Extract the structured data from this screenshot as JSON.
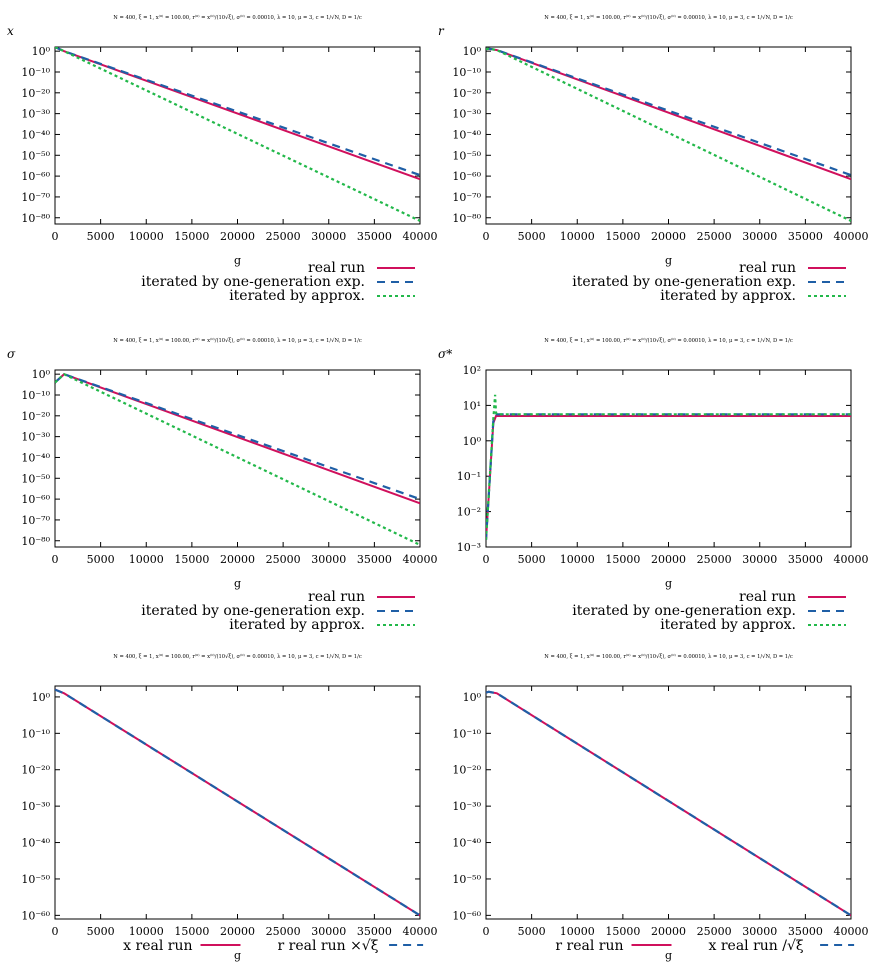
{
  "params": "N = 400, ξ = 1, x⁽⁰⁾ = 100.00, r⁽⁰⁾ = x⁽⁰⁾/(10√ξ), σ⁽⁰⁾ = 0.00010, λ = 10, μ = 3, c = 1/√N, D = 1/c",
  "colors": {
    "real": "#d0105c",
    "one_gen": "#1f5fa6",
    "approx": "#22b84a"
  },
  "chart_data": [
    {
      "id": "p1",
      "type": "line",
      "title": "N = 400, ξ = 1, x⁽⁰⁾ = 100.00, r⁽⁰⁾ = x⁽⁰⁾/(10√ξ), σ⁽⁰⁾ = 0.00010, λ = 10, μ = 3, c = 1/√N, D = 1/c",
      "ylabel": "x",
      "xlabel": "g",
      "yscale": "log",
      "xlim": [
        0,
        40000
      ],
      "ylim_exp": [
        -83,
        2
      ],
      "xticks": [
        "0",
        "5000",
        "10000",
        "15000",
        "20000",
        "25000",
        "30000",
        "35000",
        "40000"
      ],
      "yticks": [
        0,
        -10,
        -20,
        -30,
        -40,
        -50,
        -60,
        -70,
        -80
      ],
      "legend": [
        "real run",
        "iterated by one-generation exp.",
        "iterated by approx."
      ],
      "series": [
        {
          "name": "real run",
          "style": "solid",
          "color": "#d0105c",
          "x": [
            0,
            1000,
            40000
          ],
          "log10y": [
            2,
            0,
            -61.5
          ]
        },
        {
          "name": "iterated by one-generation exp.",
          "style": "dash",
          "color": "#1f5fa6",
          "x": [
            0,
            1000,
            40000
          ],
          "log10y": [
            2,
            0,
            -59.5
          ]
        },
        {
          "name": "iterated by approx.",
          "style": "dot",
          "color": "#22b84a",
          "x": [
            0,
            1000,
            40000
          ],
          "log10y": [
            2,
            0,
            -81.5
          ]
        }
      ]
    },
    {
      "id": "p2",
      "type": "line",
      "title": "N = 400, ξ = 1, x⁽⁰⁾ = 100.00, r⁽⁰⁾ = x⁽⁰⁾/(10√ξ), σ⁽⁰⁾ = 0.00010, λ = 10, μ = 3, c = 1/√N, D = 1/c",
      "ylabel": "r",
      "xlabel": "g",
      "yscale": "log",
      "xlim": [
        0,
        40000
      ],
      "ylim_exp": [
        -83,
        2
      ],
      "xticks": [
        "0",
        "5000",
        "10000",
        "15000",
        "20000",
        "25000",
        "30000",
        "35000",
        "40000"
      ],
      "yticks": [
        0,
        -10,
        -20,
        -30,
        -40,
        -50,
        -60,
        -70,
        -80
      ],
      "legend": [
        "real run",
        "iterated by one-generation exp.",
        "iterated by approx."
      ],
      "series": [
        {
          "name": "real run",
          "style": "solid",
          "color": "#d0105c",
          "x": [
            0,
            300,
            1200,
            40000
          ],
          "log10y": [
            1,
            1.2,
            0.5,
            -61.5
          ]
        },
        {
          "name": "iterated by one-generation exp.",
          "style": "dash",
          "color": "#1f5fa6",
          "x": [
            0,
            300,
            1200,
            40000
          ],
          "log10y": [
            1,
            1.2,
            0.5,
            -59.5
          ]
        },
        {
          "name": "iterated by approx.",
          "style": "dot",
          "color": "#22b84a",
          "x": [
            0,
            300,
            1200,
            40000
          ],
          "log10y": [
            1,
            1.2,
            0.5,
            -81.5
          ]
        }
      ]
    },
    {
      "id": "p3",
      "type": "line",
      "title": "N = 400, ξ = 1, x⁽⁰⁾ = 100.00, r⁽⁰⁾ = x⁽⁰⁾/(10√ξ), σ⁽⁰⁾ = 0.00010, λ = 10, μ = 3, c = 1/√N, D = 1/c",
      "ylabel": "σ",
      "xlabel": "g",
      "yscale": "log",
      "xlim": [
        0,
        40000
      ],
      "ylim_exp": [
        -83,
        2
      ],
      "xticks": [
        "0",
        "5000",
        "10000",
        "15000",
        "20000",
        "25000",
        "30000",
        "35000",
        "40000"
      ],
      "yticks": [
        0,
        -10,
        -20,
        -30,
        -40,
        -50,
        -60,
        -70,
        -80
      ],
      "legend": [
        "real run",
        "iterated by one-generation exp.",
        "iterated by approx."
      ],
      "series": [
        {
          "name": "real run",
          "style": "solid",
          "color": "#d0105c",
          "x": [
            0,
            1000,
            40000
          ],
          "log10y": [
            -4,
            0,
            -62
          ]
        },
        {
          "name": "iterated by one-generation exp.",
          "style": "dash",
          "color": "#1f5fa6",
          "x": [
            0,
            1000,
            40000
          ],
          "log10y": [
            -4,
            0,
            -60
          ]
        },
        {
          "name": "iterated by approx.",
          "style": "dot",
          "color": "#22b84a",
          "x": [
            0,
            1000,
            40000
          ],
          "log10y": [
            -4,
            0,
            -82
          ]
        }
      ]
    },
    {
      "id": "p4",
      "type": "line",
      "title": "N = 400, ξ = 1, x⁽⁰⁾ = 100.00, r⁽⁰⁾ = x⁽⁰⁾/(10√ξ), σ⁽⁰⁾ = 0.00010, λ = 10, μ = 3, c = 1/√N, D = 1/c",
      "ylabel": "σ*",
      "xlabel": "g",
      "yscale": "log",
      "xlim": [
        0,
        40000
      ],
      "ylim_exp": [
        -3,
        2
      ],
      "xticks": [
        "0",
        "5000",
        "10000",
        "15000",
        "20000",
        "25000",
        "30000",
        "35000",
        "40000"
      ],
      "yticks": [
        2,
        1,
        0,
        -1,
        -2,
        -3
      ],
      "legend": [
        "real run",
        "iterated by one-generation exp.",
        "iterated by approx."
      ],
      "series": [
        {
          "name": "real run",
          "style": "solid",
          "color": "#d0105c",
          "x": [
            0,
            800,
            1100,
            40000
          ],
          "log10y": [
            -2.8,
            0.5,
            0.7,
            0.7
          ]
        },
        {
          "name": "iterated by one-generation exp.",
          "style": "dash",
          "color": "#1f5fa6",
          "x": [
            0,
            800,
            1100,
            40000
          ],
          "log10y": [
            -2.8,
            0.55,
            0.75,
            0.75
          ]
        },
        {
          "name": "iterated by approx.",
          "style": "dot",
          "color": "#22b84a",
          "x": [
            0,
            800,
            1000,
            1100,
            1200,
            40000
          ],
          "log10y": [
            -2.8,
            0.6,
            1.3,
            0.8,
            0.75,
            0.75
          ]
        }
      ]
    },
    {
      "id": "p5",
      "type": "line",
      "title": "N = 400, ξ = 1, x⁽⁰⁾ = 100.00, r⁽⁰⁾ = x⁽⁰⁾/(10√ξ), σ⁽⁰⁾ = 0.00010, λ = 10, μ = 3, c = 1/√N, D = 1/c",
      "ylabel": "",
      "xlabel": "g",
      "yscale": "log",
      "xlim": [
        0,
        40000
      ],
      "ylim_exp": [
        -61,
        3
      ],
      "xticks": [
        "0",
        "5000",
        "10000",
        "15000",
        "20000",
        "25000",
        "30000",
        "35000",
        "40000"
      ],
      "yticks": [
        0,
        -10,
        -20,
        -30,
        -40,
        -50,
        -60
      ],
      "legend": [
        "x real run",
        "r real run ×√ξ"
      ],
      "series": [
        {
          "name": "x real run",
          "style": "solid",
          "color": "#d0105c",
          "x": [
            0,
            1000,
            40000
          ],
          "log10y": [
            2,
            1,
            -60
          ]
        },
        {
          "name": "r real run ×√ξ",
          "style": "dash",
          "color": "#1f5fa6",
          "x": [
            0,
            1000,
            40000
          ],
          "log10y": [
            2,
            1,
            -60
          ]
        }
      ]
    },
    {
      "id": "p6",
      "type": "line",
      "title": "N = 400, ξ = 1, x⁽⁰⁾ = 100.00, r⁽⁰⁾ = x⁽⁰⁾/(10√ξ), σ⁽⁰⁾ = 0.00010, λ = 10, μ = 3, c = 1/√N, D = 1/c",
      "ylabel": "",
      "xlabel": "g",
      "yscale": "log",
      "xlim": [
        0,
        40000
      ],
      "ylim_exp": [
        -61,
        3
      ],
      "xticks": [
        "0",
        "5000",
        "10000",
        "15000",
        "20000",
        "25000",
        "30000",
        "35000",
        "40000"
      ],
      "yticks": [
        0,
        -10,
        -20,
        -30,
        -40,
        -50,
        -60
      ],
      "legend": [
        "r real run",
        "x real run /√ξ"
      ],
      "series": [
        {
          "name": "r real run",
          "style": "solid",
          "color": "#d0105c",
          "x": [
            0,
            300,
            1200,
            40000
          ],
          "log10y": [
            1.2,
            1.4,
            1,
            -60
          ]
        },
        {
          "name": "x real run /√ξ",
          "style": "dash",
          "color": "#1f5fa6",
          "x": [
            0,
            300,
            1200,
            40000
          ],
          "log10y": [
            1.2,
            1.4,
            1,
            -60
          ]
        }
      ]
    }
  ]
}
